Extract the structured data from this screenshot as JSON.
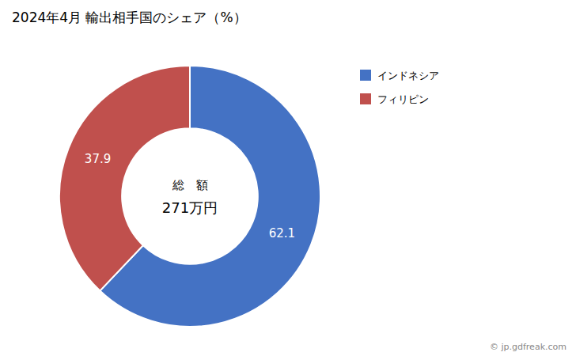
{
  "chart_data": {
    "type": "donut",
    "title": "2024年4月 輸出相手国のシェア（%）",
    "categories": [
      "インドネシア",
      "フィリピン"
    ],
    "values": [
      62.1,
      37.9
    ],
    "colors": [
      "#4472C4",
      "#C0504D"
    ],
    "data_labels": true,
    "legend": "right",
    "annotations": [
      "総　額",
      "271万円",
      "© jp.gdfreak.com"
    ]
  }
}
